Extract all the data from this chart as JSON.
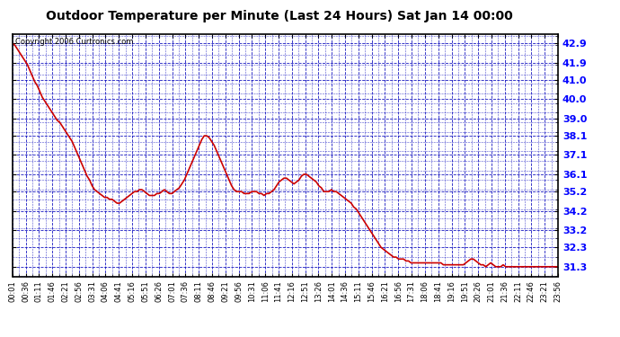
{
  "title": "Outdoor Temperature per Minute (Last 24 Hours) Sat Jan 14 00:00",
  "copyright": "Copyright 2006 Curtronics.com",
  "background_color": "#ffffff",
  "plot_bg_color": "#ffffff",
  "grid_color": "#0000bb",
  "line_color": "#cc0000",
  "line_width": 1.2,
  "yticks": [
    31.3,
    32.3,
    33.2,
    34.2,
    35.2,
    36.1,
    37.1,
    38.1,
    39.0,
    40.0,
    41.0,
    41.9,
    42.9
  ],
  "ylim": [
    30.8,
    43.4
  ],
  "xtick_labels": [
    "00:01",
    "00:36",
    "01:11",
    "01:46",
    "02:21",
    "02:56",
    "03:31",
    "04:06",
    "04:41",
    "05:16",
    "05:51",
    "06:26",
    "07:01",
    "07:36",
    "08:11",
    "08:46",
    "09:21",
    "09:56",
    "10:31",
    "11:06",
    "11:41",
    "12:16",
    "12:51",
    "13:26",
    "14:01",
    "14:36",
    "15:11",
    "15:46",
    "16:21",
    "16:56",
    "17:31",
    "18:06",
    "18:41",
    "19:16",
    "19:51",
    "20:26",
    "21:01",
    "21:36",
    "22:11",
    "22:46",
    "23:21",
    "23:56"
  ],
  "n_xticks": 42,
  "data_points": [
    42.9,
    42.8,
    42.6,
    42.4,
    42.2,
    42.0,
    41.8,
    41.5,
    41.2,
    40.9,
    40.7,
    40.4,
    40.1,
    39.9,
    39.7,
    39.5,
    39.3,
    39.1,
    38.9,
    38.8,
    38.6,
    38.4,
    38.2,
    38.0,
    37.8,
    37.5,
    37.2,
    36.9,
    36.6,
    36.3,
    36.0,
    35.8,
    35.5,
    35.3,
    35.2,
    35.1,
    35.0,
    34.9,
    34.9,
    34.8,
    34.8,
    34.7,
    34.6,
    34.6,
    34.7,
    34.8,
    34.9,
    35.0,
    35.1,
    35.2,
    35.2,
    35.3,
    35.3,
    35.2,
    35.1,
    35.0,
    35.0,
    35.0,
    35.1,
    35.1,
    35.2,
    35.3,
    35.2,
    35.1,
    35.1,
    35.2,
    35.3,
    35.4,
    35.6,
    35.8,
    36.1,
    36.4,
    36.7,
    37.0,
    37.3,
    37.6,
    37.9,
    38.1,
    38.1,
    38.0,
    37.8,
    37.6,
    37.3,
    37.0,
    36.7,
    36.4,
    36.1,
    35.8,
    35.5,
    35.3,
    35.2,
    35.2,
    35.2,
    35.1,
    35.1,
    35.1,
    35.2,
    35.2,
    35.2,
    35.1,
    35.1,
    35.0,
    35.1,
    35.1,
    35.2,
    35.3,
    35.5,
    35.7,
    35.8,
    35.9,
    35.9,
    35.8,
    35.7,
    35.6,
    35.7,
    35.8,
    36.0,
    36.1,
    36.1,
    36.0,
    35.9,
    35.8,
    35.7,
    35.5,
    35.4,
    35.2,
    35.2,
    35.2,
    35.3,
    35.2,
    35.2,
    35.1,
    35.0,
    34.9,
    34.8,
    34.7,
    34.6,
    34.4,
    34.3,
    34.1,
    33.9,
    33.7,
    33.5,
    33.3,
    33.1,
    32.9,
    32.7,
    32.5,
    32.3,
    32.2,
    32.1,
    32.0,
    31.9,
    31.8,
    31.8,
    31.7,
    31.7,
    31.7,
    31.6,
    31.6,
    31.5,
    31.5,
    31.5,
    31.5,
    31.5,
    31.5,
    31.5,
    31.5,
    31.5,
    31.5,
    31.5,
    31.5,
    31.5,
    31.4,
    31.4,
    31.4,
    31.4,
    31.4,
    31.4,
    31.4,
    31.4,
    31.4,
    31.5,
    31.6,
    31.7,
    31.7,
    31.6,
    31.5,
    31.4,
    31.4,
    31.3,
    31.4,
    31.5,
    31.4,
    31.3,
    31.3,
    31.3,
    31.4,
    31.3,
    31.3,
    31.3,
    31.3,
    31.3,
    31.3,
    31.3,
    31.3,
    31.3,
    31.3,
    31.3,
    31.3,
    31.3,
    31.3,
    31.3,
    31.3,
    31.3,
    31.3,
    31.3,
    31.3,
    31.3,
    31.3
  ]
}
